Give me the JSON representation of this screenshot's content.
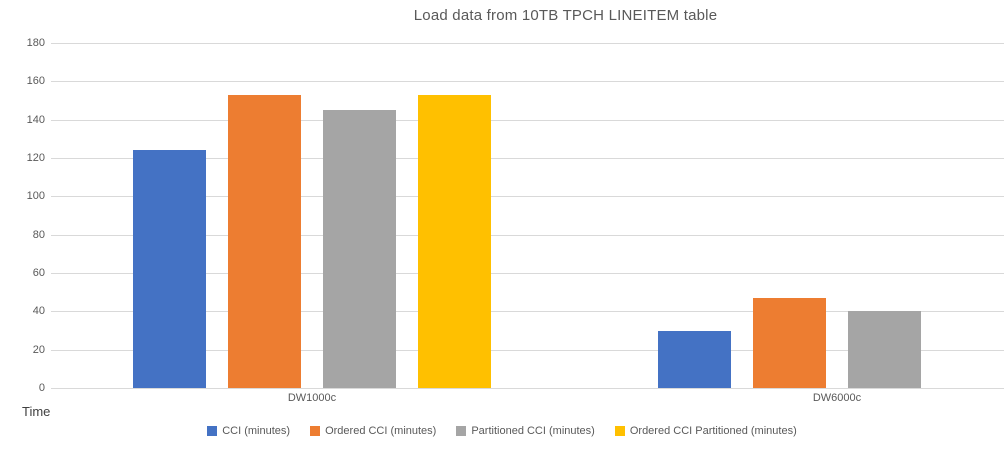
{
  "chart_data": {
    "type": "bar",
    "title": "Load data from 10TB TPCH LINEITEM table",
    "categories": [
      "DW1000c",
      "DW6000c"
    ],
    "series": [
      {
        "name": "CCI (minutes)",
        "color": "#4472C4",
        "values": [
          124,
          30
        ]
      },
      {
        "name": "Ordered CCI (minutes)",
        "color": "#ED7D31",
        "values": [
          153,
          47
        ]
      },
      {
        "name": "Partitioned CCI (minutes)",
        "color": "#A5A5A5",
        "values": [
          145,
          40
        ]
      },
      {
        "name": "Ordered CCI Partitioned (minutes)",
        "color": "#FFC000",
        "values": [
          153,
          null
        ]
      }
    ],
    "xlabel": "",
    "ylabel": "Time",
    "ylim": [
      0,
      180
    ],
    "yticks": [
      0,
      20,
      40,
      60,
      80,
      100,
      120,
      140,
      160,
      180
    ],
    "grid": true,
    "legend_position": "bottom",
    "colors": {
      "gridline": "#d9d9d9",
      "tick_text": "#595959",
      "title_text": "#595959",
      "axis_title_text": "#404040",
      "background": "#ffffff"
    }
  }
}
